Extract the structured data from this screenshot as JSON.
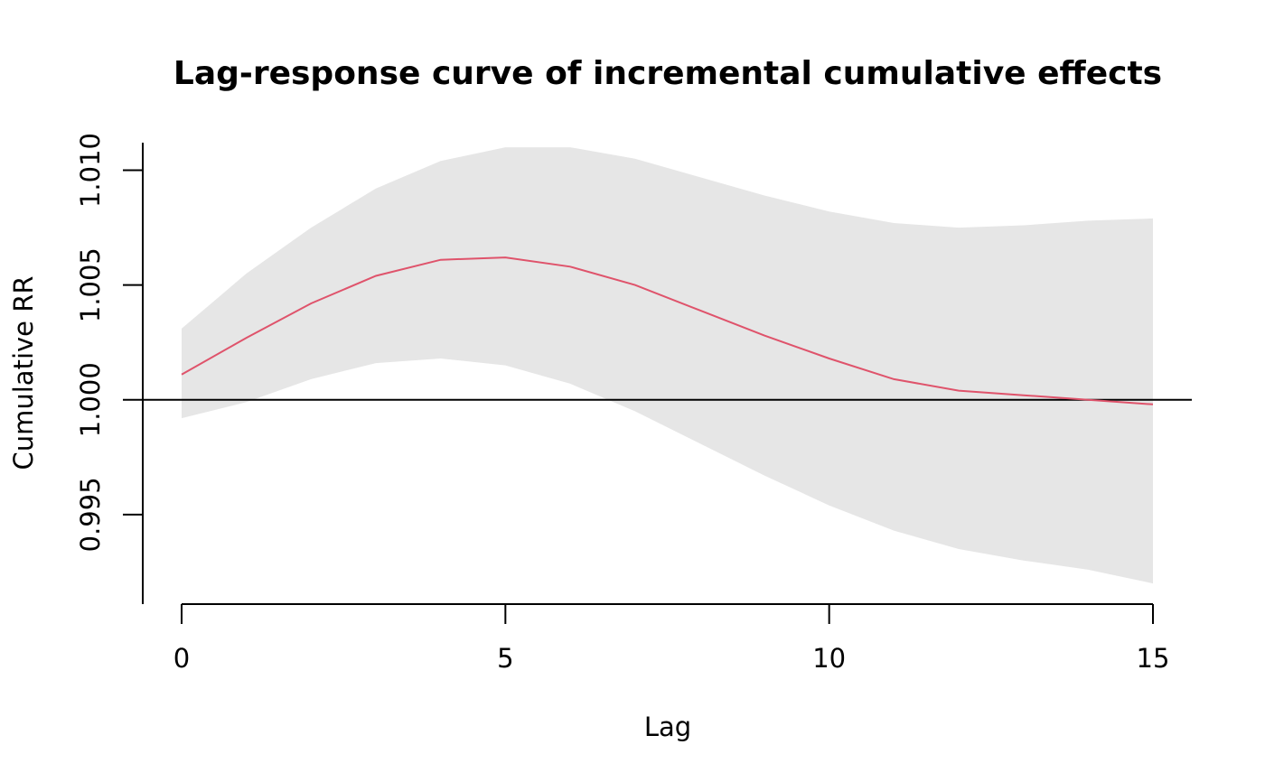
{
  "chart_data": {
    "type": "line",
    "title": "Lag-response curve of incremental cumulative effects",
    "xlabel": "Lag",
    "ylabel": "Cumulative RR",
    "xlim": [
      0,
      15
    ],
    "ylim": [
      0.9911,
      1.0112
    ],
    "x_ticks": [
      0,
      5,
      10,
      15
    ],
    "y_ticks": [
      0.995,
      1.0,
      1.005,
      1.01
    ],
    "y_tick_labels": [
      "0.995",
      "1.000",
      "1.005",
      "1.010"
    ],
    "reference_line": 1.0,
    "grid": false,
    "colors": {
      "line": "#df536b",
      "ci_band": "#e6e6e6",
      "reference": "#000000"
    },
    "x": [
      0,
      1,
      2,
      3,
      4,
      5,
      6,
      7,
      8,
      9,
      10,
      11,
      12,
      13,
      14,
      15
    ],
    "series": [
      {
        "values": [
          1.0011,
          1.0027,
          1.0042,
          1.0054,
          1.0061,
          1.0062,
          1.0058,
          1.005,
          1.0039,
          1.0028,
          1.0018,
          1.0009,
          1.0004,
          1.0002,
          1.0,
          0.9998
        ]
      }
    ],
    "ci_lower": [
      0.9992,
      0.9999,
      1.0009,
      1.0016,
      1.0018,
      1.0015,
      1.0007,
      0.9995,
      0.9981,
      0.9967,
      0.9954,
      0.9943,
      0.9935,
      0.993,
      0.9926,
      0.992
    ],
    "ci_upper": [
      1.0031,
      1.0055,
      1.0075,
      1.0092,
      1.0104,
      1.011,
      1.011,
      1.0105,
      1.0097,
      1.0089,
      1.0082,
      1.0077,
      1.0075,
      1.0076,
      1.0078,
      1.0079
    ]
  }
}
